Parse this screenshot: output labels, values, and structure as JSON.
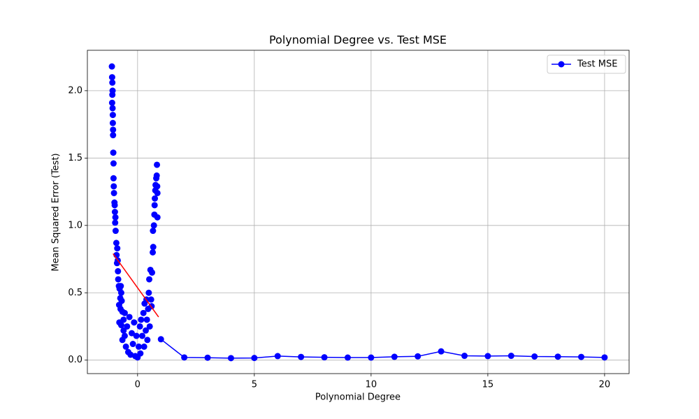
{
  "chart_data": {
    "type": "line",
    "title": "Polynomial Degree vs. Test MSE",
    "x_label": "Polynomial Degree",
    "y_label": "Mean Squared Error (Test)",
    "xlim": [
      -2.15,
      21.05
    ],
    "ylim": [
      -0.1,
      2.3
    ],
    "xticks": [
      0,
      5,
      10,
      15,
      20
    ],
    "yticks": [
      {
        "value": 0,
        "label": "0.0"
      },
      {
        "value": 0.5,
        "label": "0.5"
      },
      {
        "value": 1,
        "label": "1.0"
      },
      {
        "value": 1.5,
        "label": "1.5"
      },
      {
        "value": 2,
        "label": "2.0"
      }
    ],
    "grid": true,
    "legend": "upper right",
    "series": [
      {
        "name": "Test MSE",
        "color": "#0000ff",
        "x": [
          1,
          2,
          3,
          4,
          5,
          6,
          7,
          8,
          9,
          10,
          11,
          12,
          13,
          14,
          15,
          16,
          17,
          18,
          19,
          20
        ],
        "values": [
          0.155,
          0.02,
          0.018,
          0.015,
          0.016,
          0.03,
          0.024,
          0.021,
          0.019,
          0.019,
          0.025,
          0.028,
          0.065,
          0.032,
          0.03,
          0.032,
          0.027,
          0.026,
          0.024,
          0.02
        ]
      }
    ],
    "scatter": {
      "color": "#0000ff",
      "x": [
        -1.1,
        -1.09,
        -1.08,
        -1.07,
        -1.08,
        -1.09,
        -1.07,
        -1.06,
        -1.06,
        -1.05,
        -1.05,
        -1.04,
        -1.03,
        -1.03,
        -1.02,
        -1.01,
        -0.99,
        -0.98,
        -0.97,
        -0.95,
        -0.96,
        -0.94,
        -0.91,
        -0.87,
        -0.9,
        -0.85,
        -0.88,
        -0.84,
        -0.83,
        -0.8,
        -0.77,
        -0.72,
        -0.7,
        -0.74,
        -0.68,
        -0.79,
        -0.73,
        -0.65,
        -0.6,
        -0.78,
        -0.7,
        -0.55,
        -0.6,
        -0.65,
        -0.55,
        -0.5,
        -0.45,
        -0.4,
        -0.35,
        -0.3,
        -0.25,
        -0.2,
        -0.15,
        -0.1,
        -0.05,
        0,
        0.05,
        0.1,
        0.12,
        0.15,
        0.2,
        0.25,
        0.28,
        0.3,
        0.35,
        0.38,
        0.4,
        0.42,
        0.45,
        0.48,
        0.5,
        0.52,
        0.55,
        0.58,
        0.6,
        0.62,
        0.65,
        0.66,
        0.67,
        0.7,
        0.72,
        0.73,
        0.74,
        0.76,
        0.77,
        0.8,
        0.82,
        0.83,
        0.85,
        0.85,
        0.84
      ],
      "values": [
        2.18,
        2.1,
        2.06,
        2.0,
        1.97,
        1.91,
        1.87,
        1.82,
        1.76,
        1.71,
        1.67,
        1.54,
        1.46,
        1.35,
        1.29,
        1.24,
        1.17,
        1.15,
        1.1,
        1.06,
        1.02,
        0.96,
        0.87,
        0.83,
        0.78,
        0.74,
        0.72,
        0.66,
        0.6,
        0.55,
        0.53,
        0.55,
        0.5,
        0.46,
        0.44,
        0.41,
        0.38,
        0.36,
        0.3,
        0.28,
        0.26,
        0.35,
        0.22,
        0.15,
        0.18,
        0.1,
        0.25,
        0.06,
        0.32,
        0.04,
        0.2,
        0.12,
        0.28,
        0.03,
        0.18,
        0.02,
        0.1,
        0.25,
        0.05,
        0.3,
        0.18,
        0.35,
        0.1,
        0.42,
        0.22,
        0.45,
        0.3,
        0.15,
        0.38,
        0.5,
        0.6,
        0.25,
        0.67,
        0.45,
        0.4,
        0.65,
        0.8,
        0.96,
        0.84,
        1.0,
        1.08,
        1.15,
        1.2,
        1.26,
        1.3,
        1.35,
        1.37,
        1.45,
        1.24,
        1.06,
        1.29
      ]
    },
    "fit_line": {
      "color": "#ff0000",
      "x": [
        -1.05,
        0.9
      ],
      "values": [
        0.79,
        0.32
      ]
    }
  }
}
